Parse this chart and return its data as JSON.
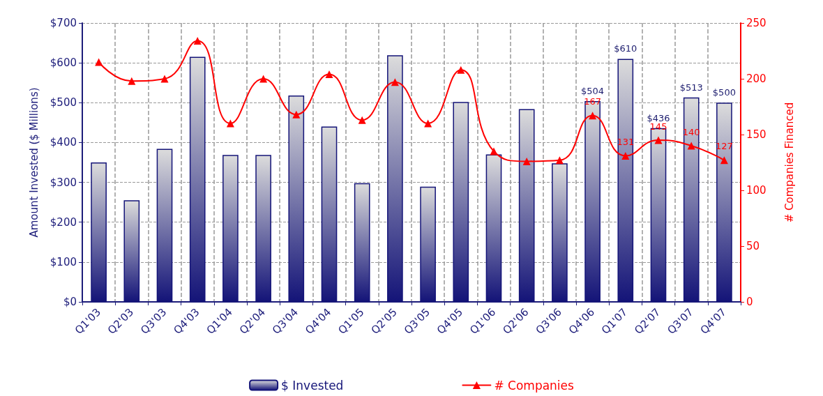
{
  "chart_data": {
    "type": "bar",
    "ylabel": "Amount Invested ($ Millions)",
    "y2label": "# Companies Financed",
    "categories": [
      "Q1'03",
      "Q2'03",
      "Q3'03",
      "Q4'03",
      "Q1'04",
      "Q2'04",
      "Q3'04",
      "Q4'04",
      "Q1'05",
      "Q2'05",
      "Q3'05",
      "Q4'05",
      "Q1'06",
      "Q2'06",
      "Q3'06",
      "Q4'06",
      "Q1'07",
      "Q2'07",
      "Q3'07",
      "Q4'07"
    ],
    "series": [
      {
        "name": "$ Invested",
        "type": "bar",
        "color": "#141478",
        "values": [
          350,
          255,
          384,
          615,
          369,
          369,
          518,
          440,
          298,
          619,
          289,
          502,
          370,
          484,
          348,
          504,
          610,
          436,
          513,
          500
        ],
        "value_labels": [
          null,
          null,
          null,
          null,
          null,
          null,
          null,
          null,
          null,
          null,
          null,
          null,
          null,
          null,
          null,
          "$504",
          "$610",
          "$436",
          "$513",
          "$500"
        ]
      },
      {
        "name": "# Companies",
        "type": "line",
        "axis": "y2",
        "color": "#ff0000",
        "marker": "triangle",
        "line_style": "solid",
        "values": [
          215,
          198,
          200,
          234,
          160,
          200,
          168,
          204,
          163,
          197,
          160,
          208,
          135,
          126,
          127,
          167,
          131,
          145,
          140,
          127
        ],
        "value_labels": [
          null,
          null,
          null,
          null,
          null,
          null,
          null,
          null,
          null,
          null,
          null,
          null,
          null,
          null,
          null,
          "167",
          "131",
          "145",
          "140",
          "127"
        ]
      }
    ],
    "ylim": [
      0,
      700
    ],
    "yticks": [
      {
        "value": 0,
        "label": "$0"
      },
      {
        "value": 100,
        "label": "$100"
      },
      {
        "value": 200,
        "label": "$200"
      },
      {
        "value": 300,
        "label": "$300"
      },
      {
        "value": 400,
        "label": "$400"
      },
      {
        "value": 500,
        "label": "$500"
      },
      {
        "value": 600,
        "label": "$600"
      },
      {
        "value": 700,
        "label": "$700"
      }
    ],
    "y2lim": [
      0,
      250
    ],
    "y2ticks": [
      0,
      50,
      100,
      150,
      200,
      250
    ],
    "grid": true,
    "legend": "bottom"
  }
}
